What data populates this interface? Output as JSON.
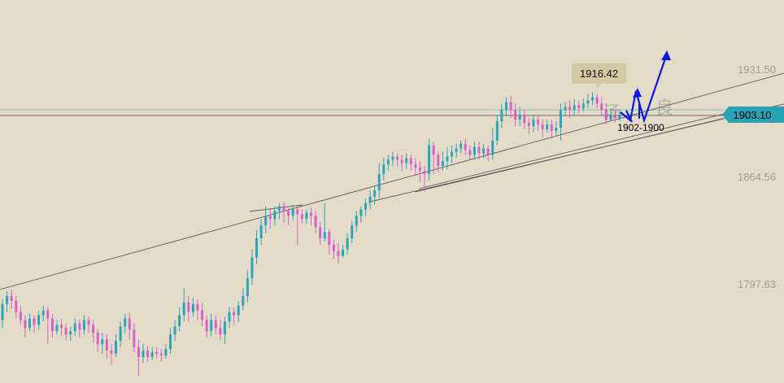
{
  "chart_data": {
    "type": "candlestick",
    "price_labels": [
      "1931.50",
      "1864.56",
      "1797.63"
    ],
    "price_levels": [
      1931.5,
      1864.56,
      1797.63
    ],
    "current_price": "1903.10",
    "current_price_value": 1903.1,
    "high_callout": "1916.42",
    "high_callout_value": 1916.42,
    "target_annotation": "1902-1900",
    "colors": {
      "background": "#e4dcc8",
      "up": "#2aa6b8",
      "down": "#d861c9",
      "trendline": "#5a5a5a",
      "arrow": "#0a18e0",
      "current_tag": "#26a3b5",
      "callout_bg": "#d4c7a4"
    },
    "candles": [
      [
        1775,
        1785,
        1770,
        1788
      ],
      [
        1785,
        1790,
        1780,
        1793
      ],
      [
        1790,
        1787,
        1782,
        1794
      ],
      [
        1787,
        1780,
        1776,
        1790
      ],
      [
        1780,
        1775,
        1772,
        1784
      ],
      [
        1775,
        1770,
        1764,
        1778
      ],
      [
        1770,
        1776,
        1768,
        1779
      ],
      [
        1776,
        1772,
        1767,
        1778
      ],
      [
        1772,
        1778,
        1769,
        1781
      ],
      [
        1778,
        1781,
        1774,
        1784
      ],
      [
        1781,
        1776,
        1760,
        1783
      ],
      [
        1776,
        1768,
        1764,
        1779
      ],
      [
        1768,
        1772,
        1766,
        1775
      ],
      [
        1772,
        1770,
        1765,
        1776
      ],
      [
        1770,
        1766,
        1762,
        1773
      ],
      [
        1766,
        1768,
        1762,
        1771
      ],
      [
        1768,
        1773,
        1765,
        1776
      ],
      [
        1773,
        1769,
        1764,
        1775
      ],
      [
        1769,
        1775,
        1766,
        1778
      ],
      [
        1775,
        1772,
        1767,
        1777
      ],
      [
        1772,
        1767,
        1761,
        1775
      ],
      [
        1767,
        1760,
        1755,
        1769
      ],
      [
        1760,
        1763,
        1754,
        1767
      ],
      [
        1763,
        1756,
        1751,
        1766
      ],
      [
        1756,
        1754,
        1747,
        1760
      ],
      [
        1754,
        1762,
        1752,
        1766
      ],
      [
        1762,
        1771,
        1758,
        1774
      ],
      [
        1771,
        1776,
        1767,
        1779
      ],
      [
        1776,
        1769,
        1763,
        1780
      ],
      [
        1769,
        1758,
        1755,
        1773
      ],
      [
        1758,
        1752,
        1740,
        1763
      ],
      [
        1752,
        1756,
        1748,
        1760
      ],
      [
        1756,
        1752,
        1749,
        1759
      ],
      [
        1752,
        1755,
        1750,
        1758
      ],
      [
        1755,
        1754,
        1751,
        1758
      ],
      [
        1754,
        1753,
        1749,
        1757
      ],
      [
        1753,
        1757,
        1751,
        1760
      ],
      [
        1757,
        1766,
        1754,
        1770
      ],
      [
        1766,
        1771,
        1762,
        1775
      ],
      [
        1771,
        1778,
        1768,
        1783
      ],
      [
        1778,
        1786,
        1774,
        1795
      ],
      [
        1786,
        1780,
        1774,
        1790
      ],
      [
        1780,
        1785,
        1777,
        1789
      ],
      [
        1785,
        1781,
        1775,
        1788
      ],
      [
        1781,
        1775,
        1771,
        1786
      ],
      [
        1775,
        1768,
        1764,
        1778
      ],
      [
        1768,
        1775,
        1765,
        1779
      ],
      [
        1775,
        1770,
        1766,
        1778
      ],
      [
        1770,
        1766,
        1762,
        1775
      ],
      [
        1766,
        1774,
        1760,
        1777
      ],
      [
        1774,
        1780,
        1770,
        1783
      ],
      [
        1780,
        1778,
        1772,
        1783
      ],
      [
        1778,
        1784,
        1774,
        1787
      ],
      [
        1784,
        1790,
        1781,
        1795
      ],
      [
        1790,
        1801,
        1786,
        1806
      ],
      [
        1801,
        1814,
        1797,
        1819
      ],
      [
        1814,
        1826,
        1810,
        1831
      ],
      [
        1826,
        1834,
        1822,
        1838
      ],
      [
        1834,
        1840,
        1829,
        1846
      ],
      [
        1840,
        1838,
        1832,
        1844
      ],
      [
        1838,
        1843,
        1834,
        1846
      ],
      [
        1843,
        1846,
        1838,
        1848
      ],
      [
        1846,
        1843,
        1836,
        1849
      ],
      [
        1843,
        1840,
        1834,
        1845
      ],
      [
        1840,
        1844,
        1837,
        1847
      ],
      [
        1844,
        1841,
        1822,
        1846
      ],
      [
        1841,
        1838,
        1835,
        1844
      ],
      [
        1838,
        1842,
        1835,
        1844
      ],
      [
        1842,
        1840,
        1834,
        1845
      ],
      [
        1840,
        1833,
        1829,
        1843
      ],
      [
        1833,
        1826,
        1822,
        1836
      ],
      [
        1826,
        1830,
        1824,
        1848
      ],
      [
        1830,
        1822,
        1816,
        1832
      ],
      [
        1822,
        1818,
        1813,
        1825
      ],
      [
        1818,
        1815,
        1810,
        1823
      ],
      [
        1815,
        1819,
        1814,
        1822
      ],
      [
        1819,
        1826,
        1816,
        1829
      ],
      [
        1826,
        1834,
        1823,
        1837
      ],
      [
        1834,
        1840,
        1830,
        1843
      ],
      [
        1840,
        1844,
        1836,
        1846
      ],
      [
        1844,
        1848,
        1840,
        1851
      ],
      [
        1848,
        1852,
        1844,
        1856
      ],
      [
        1852,
        1856,
        1847,
        1859
      ],
      [
        1856,
        1866,
        1851,
        1873
      ],
      [
        1866,
        1872,
        1862,
        1876
      ],
      [
        1872,
        1875,
        1868,
        1878
      ],
      [
        1875,
        1877,
        1871,
        1880
      ],
      [
        1877,
        1875,
        1871,
        1879
      ],
      [
        1875,
        1873,
        1868,
        1878
      ],
      [
        1873,
        1876,
        1869,
        1879
      ],
      [
        1876,
        1872,
        1868,
        1878
      ],
      [
        1872,
        1870,
        1865,
        1876
      ],
      [
        1870,
        1868,
        1861,
        1874
      ],
      [
        1868,
        1866,
        1855,
        1871
      ],
      [
        1866,
        1884,
        1862,
        1888
      ],
      [
        1884,
        1878,
        1866,
        1886
      ],
      [
        1878,
        1871,
        1867,
        1880
      ],
      [
        1871,
        1874,
        1868,
        1880
      ],
      [
        1874,
        1877,
        1869,
        1883
      ],
      [
        1877,
        1880,
        1873,
        1884
      ],
      [
        1880,
        1882,
        1876,
        1885
      ],
      [
        1882,
        1885,
        1879,
        1887
      ],
      [
        1885,
        1881,
        1878,
        1888
      ],
      [
        1881,
        1878,
        1875,
        1884
      ],
      [
        1878,
        1883,
        1875,
        1886
      ],
      [
        1883,
        1879,
        1875,
        1886
      ],
      [
        1879,
        1882,
        1876,
        1885
      ],
      [
        1882,
        1878,
        1874,
        1884
      ],
      [
        1878,
        1887,
        1875,
        1895
      ],
      [
        1887,
        1899,
        1884,
        1903
      ],
      [
        1899,
        1906,
        1895,
        1910
      ],
      [
        1906,
        1911,
        1902,
        1914
      ],
      [
        1911,
        1906,
        1901,
        1915
      ],
      [
        1906,
        1900,
        1896,
        1910
      ],
      [
        1900,
        1903,
        1896,
        1908
      ],
      [
        1903,
        1898,
        1894,
        1906
      ],
      [
        1898,
        1896,
        1891,
        1901
      ],
      [
        1896,
        1900,
        1892,
        1903
      ],
      [
        1900,
        1897,
        1893,
        1902
      ],
      [
        1897,
        1894,
        1889,
        1900
      ],
      [
        1894,
        1897,
        1892,
        1900
      ],
      [
        1897,
        1893,
        1888,
        1900
      ],
      [
        1893,
        1895,
        1890,
        1899
      ],
      [
        1895,
        1906,
        1887,
        1910
      ],
      [
        1906,
        1908,
        1902,
        1911
      ],
      [
        1908,
        1906,
        1901,
        1912
      ],
      [
        1906,
        1909,
        1903,
        1913
      ],
      [
        1909,
        1907,
        1904,
        1912
      ],
      [
        1907,
        1910,
        1905,
        1913
      ],
      [
        1910,
        1912,
        1907,
        1916
      ],
      [
        1912,
        1914,
        1909,
        1917
      ],
      [
        1914,
        1910,
        1907,
        1916
      ],
      [
        1910,
        1906,
        1902,
        1914
      ],
      [
        1906,
        1900,
        1897,
        1910
      ],
      [
        1900,
        1903,
        1899,
        1907
      ],
      [
        1903,
        1901,
        1898,
        1906
      ],
      [
        1901,
        1903,
        1899,
        1905
      ]
    ]
  }
}
